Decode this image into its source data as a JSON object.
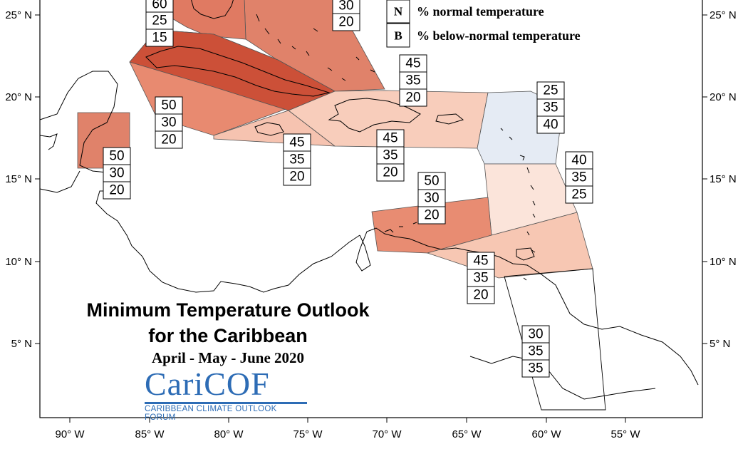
{
  "legend": [
    {
      "letter": "N",
      "label": "% normal temperature"
    },
    {
      "letter": "B",
      "label": "% below-normal temperature"
    }
  ],
  "axes": {
    "lat_left": [
      "25° N",
      "20° N",
      "15° N",
      "10° N",
      "5° N"
    ],
    "lat_right": [
      "25° N",
      "20° N",
      "15° N",
      "10° N",
      "5° N"
    ],
    "lon": [
      "90° W",
      "85° W",
      "80° W",
      "75° W",
      "70° W",
      "65° W",
      "60° W",
      "55° W"
    ]
  },
  "title": {
    "line1": "Minimum Temperature Outlook",
    "line2": "for the Caribbean",
    "period": "April - May - June 2020"
  },
  "logo": {
    "name": "CariCOF",
    "full_name": "CARIBBEAN CLIMATE OUTLOOK FORUM"
  },
  "regions": [
    {
      "id": "bahamas-nw",
      "values": [
        "60",
        "25",
        "15"
      ],
      "color": "#e07a62"
    },
    {
      "id": "bahamas-se",
      "values": [
        "30",
        "20"
      ],
      "color": "#e0826a"
    },
    {
      "id": "cuba",
      "values": [
        "50",
        "30",
        "20"
      ],
      "color": "#e88a70"
    },
    {
      "id": "cuba-core",
      "values": [],
      "color": "#cc5038"
    },
    {
      "id": "belize",
      "values": [
        "50",
        "30",
        "20"
      ],
      "color": "#e0826a"
    },
    {
      "id": "jamaica",
      "values": [
        "45",
        "35",
        "20"
      ],
      "color": "#f6c3b0"
    },
    {
      "id": "hispaniola",
      "values": [
        "45",
        "35",
        "20"
      ],
      "color": "#f8cdbb"
    },
    {
      "id": "turks-caicos",
      "values": [
        "45",
        "35",
        "20"
      ],
      "color": "#f6c3b0"
    },
    {
      "id": "northern-leewards",
      "values": [
        "25",
        "35",
        "40"
      ],
      "color": "#e5ebf4"
    },
    {
      "id": "windwards",
      "values": [
        "40",
        "35",
        "25"
      ],
      "color": "#fbe4da"
    },
    {
      "id": "abc-islands",
      "values": [
        "50",
        "30",
        "20"
      ],
      "color": "#e88c72"
    },
    {
      "id": "trinidad-barbados",
      "values": [
        "45",
        "35",
        "20"
      ],
      "color": "#f7c7b3"
    },
    {
      "id": "guianas",
      "values": [
        "30",
        "35",
        "35"
      ],
      "color": "#ffffff"
    }
  ]
}
